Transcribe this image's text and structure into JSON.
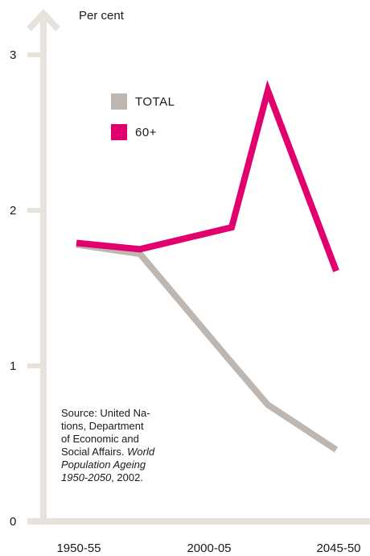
{
  "chart_data": {
    "type": "line",
    "unit_label": "Per cent",
    "y_ticks": [
      "0",
      "1",
      "2",
      "3"
    ],
    "ylim": [
      0,
      3
    ],
    "x_tick_labels": [
      "1950-55",
      "2000-05",
      "2045-50"
    ],
    "x": [
      "1950-55",
      "1975-80",
      "2000-05",
      "2025-30",
      "2045-50"
    ],
    "series": [
      {
        "name": "TOTAL",
        "color": "#bdb6b1",
        "values": [
          1.78,
          1.72,
          1.02,
          0.75,
          0.46
        ]
      },
      {
        "name": "60+",
        "color": "#e2006f",
        "values": [
          1.79,
          1.75,
          1.89,
          2.77,
          1.61
        ]
      }
    ],
    "axis_color": "#e7e3dc",
    "grid": false,
    "legend_position": "top-left"
  },
  "source": {
    "lines": [
      "Source: United Na-",
      "tions, Department",
      "of Economic and",
      "Social Affairs."
    ],
    "italic_lines": [
      "World",
      "Population Ageing",
      "1950-2050"
    ],
    "suffix": ",  2002."
  }
}
